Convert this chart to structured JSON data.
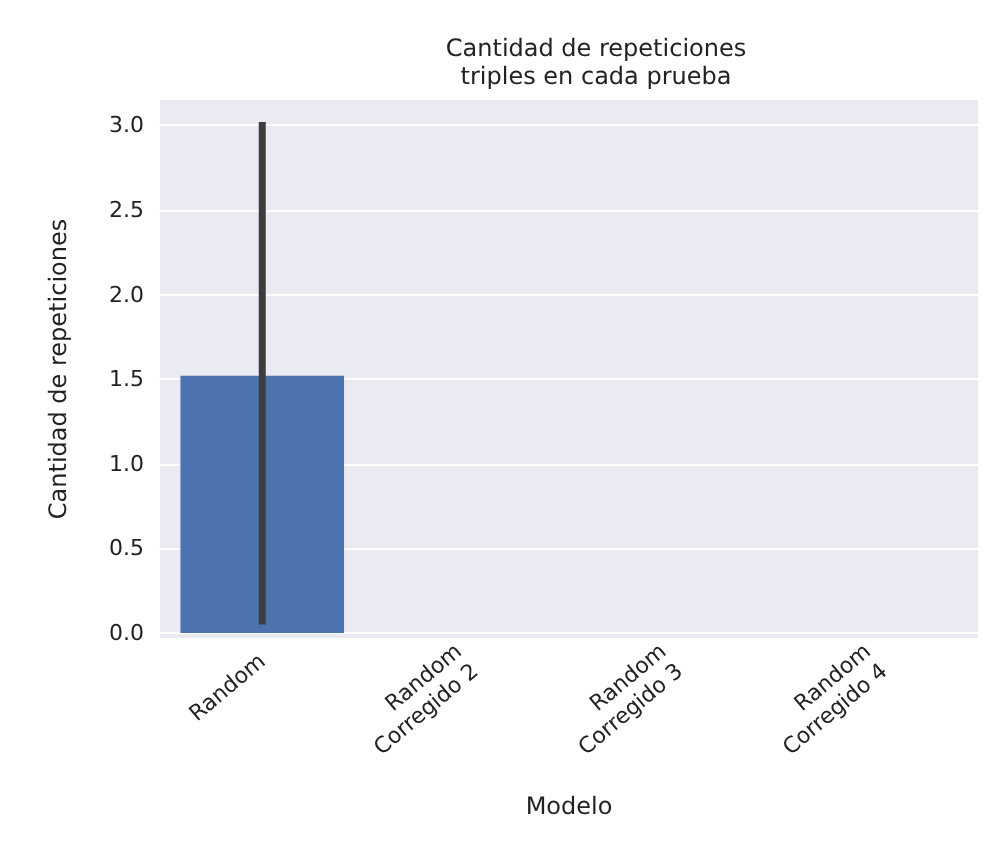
{
  "chart_data": {
    "type": "bar",
    "title": "Cantidad de repeticiones\ntriples en cada prueba",
    "xlabel": "Modelo",
    "ylabel": "Cantidad de repeticiones",
    "categories": [
      "Random",
      "Random\nCorregido 2",
      "Random\nCorregido 3",
      "Random\nCorregido 4"
    ],
    "values": [
      1.52,
      0,
      0,
      0
    ],
    "errors": [
      [
        0.05,
        3.02
      ],
      null,
      null,
      null
    ],
    "color": "#4c72b0",
    "ylim": [
      -0.03,
      3.15
    ],
    "yticks": [
      {
        "value": 0,
        "label": "0.0"
      },
      0.5,
      {
        "value": 1,
        "label": "1.0"
      },
      1.5,
      {
        "value": 2,
        "label": "2.0"
      },
      2.5,
      {
        "value": 3,
        "label": "3.0"
      }
    ],
    "grid": "y"
  }
}
